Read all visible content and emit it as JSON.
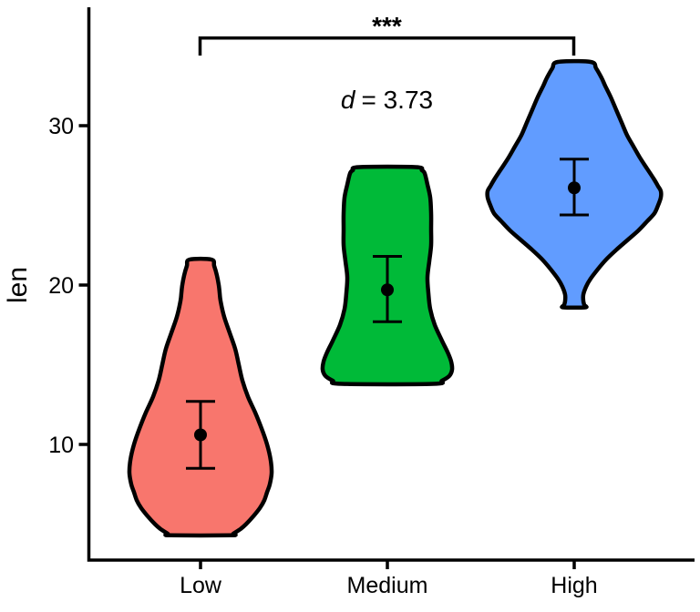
{
  "chart_data": {
    "type": "violin",
    "title": "",
    "xlabel": "",
    "ylabel": "len",
    "categories": [
      "Low",
      "Medium",
      "High"
    ],
    "y_ticks": [
      10,
      20,
      30
    ],
    "ylim": [
      2.7,
      37.4
    ],
    "grid": false,
    "legend": false,
    "style": {
      "background": "#FFFFFF",
      "outline_color": "#000000",
      "axis_color": "#000000",
      "text_color": "#000000"
    },
    "annotations": {
      "significance": "***",
      "effect_prefix": "d",
      "effect_rest": "= 3.73",
      "bracket_from": "Low",
      "bracket_to": "High",
      "bracket_top_value": 35.5,
      "bracket_drop_value": 34.4,
      "significance_value_y": 36.3,
      "effect_label_value_y": 31.6
    },
    "series": [
      {
        "name": "Low",
        "fill": "#F8766D",
        "mean": 10.6,
        "ci_low": 8.5,
        "ci_high": 12.7,
        "violin_min": 4.3,
        "violin_max": 21.6,
        "density_profile": [
          [
            21.6,
            12
          ],
          [
            21.2,
            15
          ],
          [
            20.6,
            18
          ],
          [
            20.0,
            20
          ],
          [
            19.5,
            21
          ],
          [
            19.0,
            22
          ],
          [
            18.0,
            26
          ],
          [
            17.0,
            32
          ],
          [
            16.0,
            38
          ],
          [
            15.0,
            42
          ],
          [
            14.0,
            46
          ],
          [
            13.0,
            52
          ],
          [
            12.0,
            60
          ],
          [
            11.0,
            67
          ],
          [
            10.0,
            73
          ],
          [
            9.0,
            77
          ],
          [
            8.2,
            78
          ],
          [
            7.5,
            76
          ],
          [
            7.0,
            73
          ],
          [
            6.5,
            70
          ],
          [
            6.0,
            65
          ],
          [
            5.5,
            58
          ],
          [
            5.0,
            50
          ],
          [
            4.7,
            44
          ],
          [
            4.4,
            36
          ],
          [
            4.3,
            33
          ]
        ]
      },
      {
        "name": "Medium",
        "fill": "#00BA38",
        "mean": 19.7,
        "ci_low": 17.7,
        "ci_high": 21.8,
        "violin_min": 13.8,
        "violin_max": 27.4,
        "density_profile": [
          [
            27.4,
            31
          ],
          [
            27.2,
            38
          ],
          [
            27.0,
            41
          ],
          [
            26.3,
            44
          ],
          [
            25.5,
            47
          ],
          [
            24.5,
            48
          ],
          [
            23.5,
            48
          ],
          [
            22.5,
            48
          ],
          [
            21.5,
            46
          ],
          [
            20.5,
            44
          ],
          [
            19.5,
            45
          ],
          [
            18.5,
            47
          ],
          [
            17.5,
            52
          ],
          [
            16.5,
            60
          ],
          [
            15.8,
            66
          ],
          [
            15.2,
            70
          ],
          [
            14.7,
            71
          ],
          [
            14.3,
            68
          ],
          [
            14.0,
            60
          ],
          [
            13.8,
            50
          ]
        ]
      },
      {
        "name": "High",
        "fill": "#619CFF",
        "mean": 26.1,
        "ci_low": 24.4,
        "ci_high": 27.9,
        "violin_min": 18.6,
        "violin_max": 34.0,
        "density_profile": [
          [
            34.0,
            18
          ],
          [
            33.6,
            24
          ],
          [
            33.0,
            30
          ],
          [
            32.5,
            34
          ],
          [
            31.8,
            40
          ],
          [
            31.0,
            46
          ],
          [
            30.2,
            52
          ],
          [
            29.4,
            58
          ],
          [
            28.7,
            65
          ],
          [
            28.0,
            72
          ],
          [
            27.3,
            80
          ],
          [
            26.6,
            88
          ],
          [
            26.2,
            92
          ],
          [
            25.9,
            95
          ],
          [
            25.5,
            95
          ],
          [
            25.0,
            92
          ],
          [
            24.5,
            88
          ],
          [
            24.0,
            80
          ],
          [
            23.4,
            70
          ],
          [
            22.8,
            58
          ],
          [
            22.2,
            46
          ],
          [
            21.6,
            35
          ],
          [
            21.0,
            26
          ],
          [
            20.4,
            18
          ],
          [
            19.9,
            13
          ],
          [
            19.4,
            10
          ],
          [
            19.0,
            10
          ],
          [
            18.75,
            11
          ],
          [
            18.6,
            12
          ]
        ]
      }
    ]
  }
}
